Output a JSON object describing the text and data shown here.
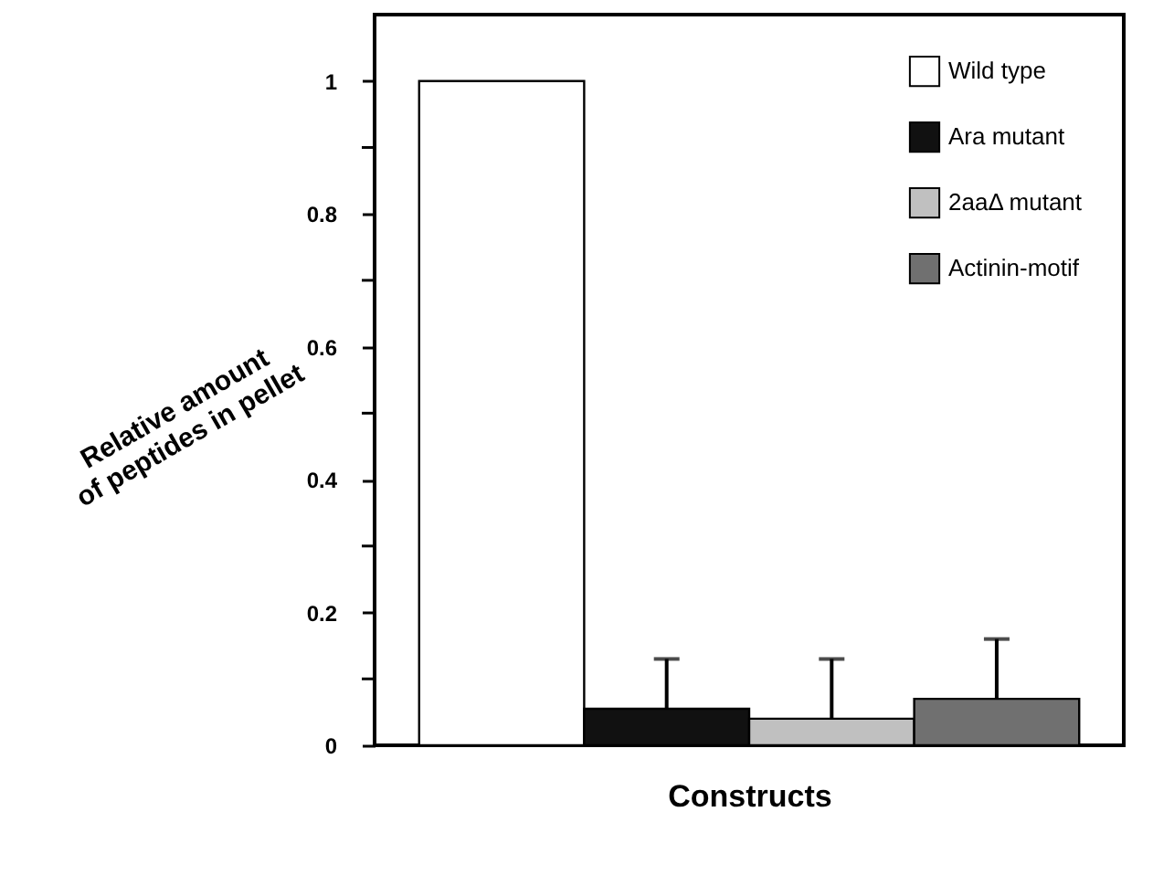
{
  "chart_data": {
    "type": "bar",
    "stacked": true,
    "categories": [
      null,
      null,
      null,
      null
    ],
    "xlabel": "Constructs",
    "ylabel": "Relative amount\nof peptides in pellet",
    "series": [
      {
        "name": "Wild type",
        "color": "#ffffff",
        "values": [
          1,
          null,
          null,
          null
        ]
      },
      {
        "name": "Ara mutant",
        "color": "#111111",
        "values": [
          null,
          0.055,
          null,
          null
        ],
        "errors": [
          null,
          [
            0.055,
            0.13
          ],
          null,
          null
        ]
      },
      {
        "name": "2aaΔ mutant",
        "color": "#c0c0c0",
        "values": [
          null,
          null,
          0.04,
          null
        ],
        "errors": [
          null,
          null,
          [
            0.04,
            0.13
          ],
          null
        ]
      },
      {
        "name": "Actinin-motif",
        "color": "#707070",
        "values": [
          null,
          null,
          null,
          0.07
        ],
        "errors": [
          null,
          null,
          null,
          [
            0.07,
            0.16
          ]
        ]
      }
    ],
    "ylim": [
      0,
      1.1
    ],
    "yticks": [
      0,
      {
        "value": 0.1,
        "label": null
      },
      0.2,
      {
        "value": 0.3,
        "label": null
      },
      0.4,
      {
        "value": 0.5,
        "label": null
      },
      0.6,
      {
        "value": 0.7,
        "label": null
      },
      0.8,
      {
        "value": 0.9,
        "label": null
      },
      1
    ],
    "tick_labels": "y",
    "grid": false,
    "legend": "top right"
  }
}
